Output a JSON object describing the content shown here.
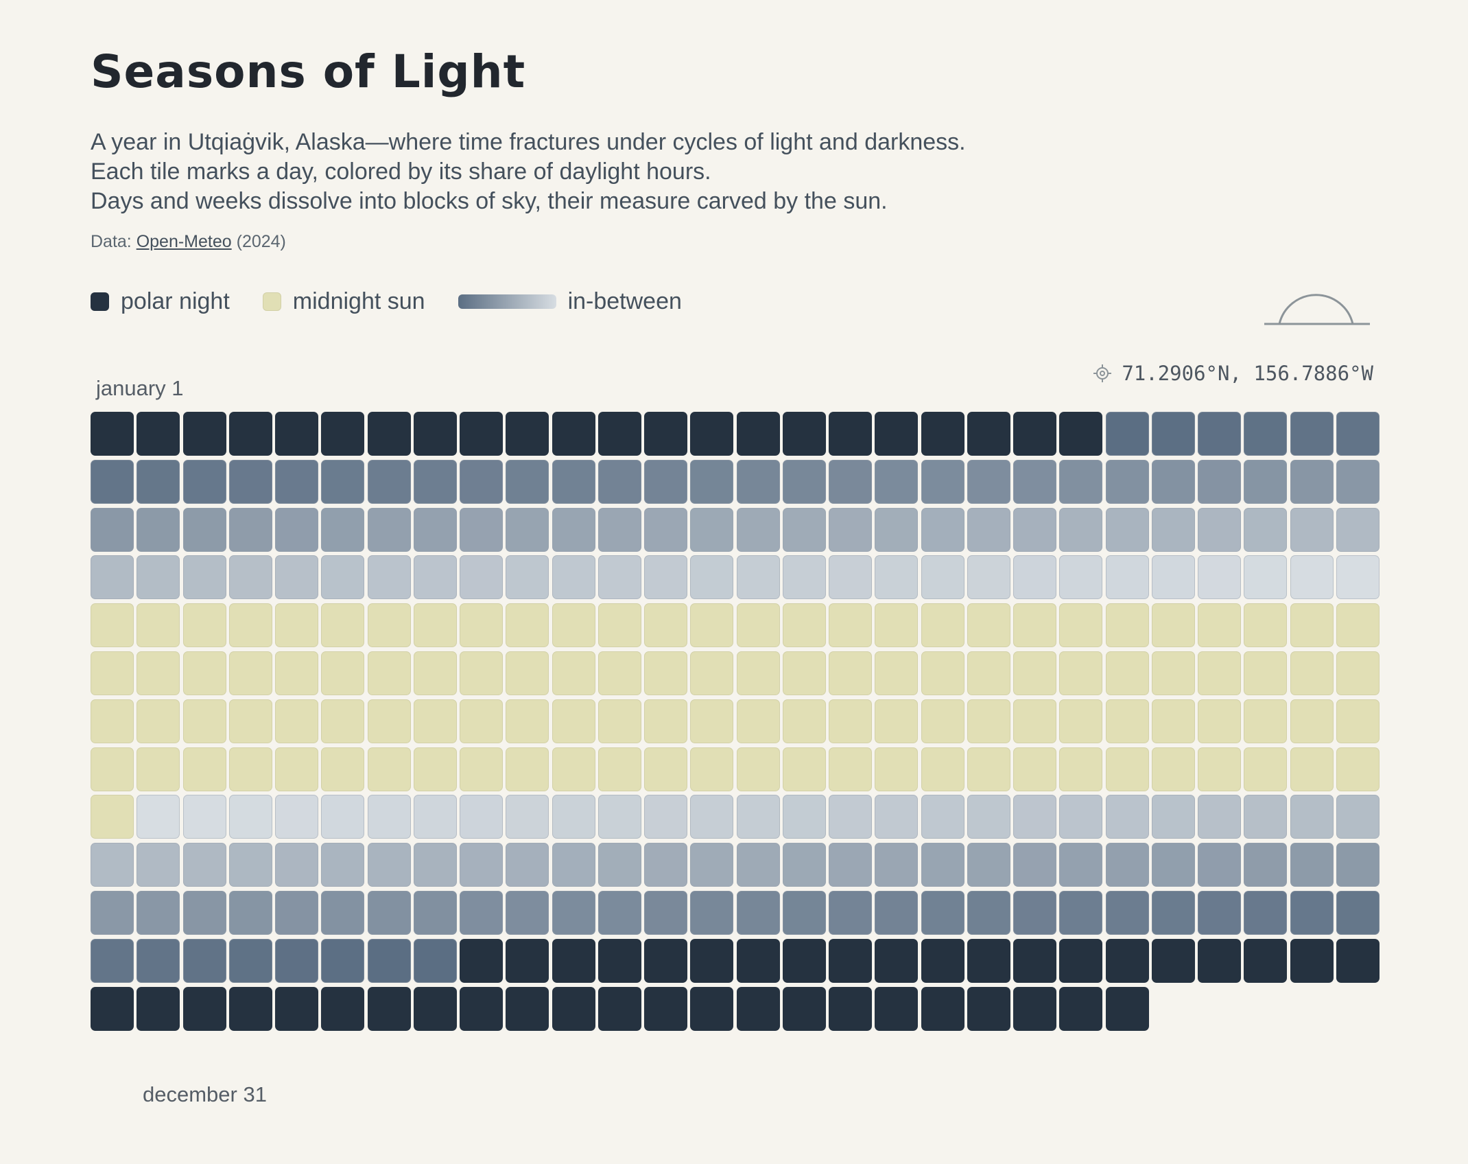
{
  "header": {
    "title": "Seasons of Light",
    "subtitle_lines": [
      "A year in Utqiaġvik, Alaska—where time fractures under cycles of light and darkness.",
      "Each tile marks a day, colored by its share of daylight hours.",
      "Days and weeks dissolve into blocks of sky, their measure carved by the sun."
    ],
    "source_prefix": "Data: ",
    "source_link": "Open-Meteo",
    "source_suffix": " (2024)"
  },
  "legend": {
    "night": "polar night",
    "sun": "midnight sun",
    "between": "in-between"
  },
  "location": {
    "coords": "71.2906°N, 156.7886°W"
  },
  "labels": {
    "start": "january 1",
    "end": "december 31"
  },
  "colors": {
    "background": "#f6f4ee",
    "polar_night": "#253240",
    "midnight_sun": "#e1dfb5",
    "between_dark": "#5b6e83",
    "between_light": "#d7dde2"
  },
  "icons": {
    "sun": "half-sun-horizon-icon",
    "location": "crosshair-icon"
  },
  "chart_data": {
    "type": "heatmap",
    "year": 2024,
    "columns_per_row": 28,
    "total_days": 366,
    "encoding": "daylight share (0 = polar night, 1 = midnight sun)",
    "daylight_fraction": [
      0,
      0,
      0,
      0,
      0,
      0,
      0,
      0,
      0,
      0,
      0,
      0,
      0,
      0,
      0,
      0,
      0,
      0,
      0,
      0,
      0,
      0,
      0.1,
      0.11,
      0.12,
      0.13,
      0.14,
      0.15,
      0.16,
      0.17,
      0.18,
      0.19,
      0.2,
      0.21,
      0.22,
      0.23,
      0.24,
      0.25,
      0.26,
      0.27,
      0.28,
      0.29,
      0.3,
      0.31,
      0.32,
      0.33,
      0.34,
      0.35,
      0.36,
      0.37,
      0.38,
      0.39,
      0.4,
      0.41,
      0.42,
      0.43,
      0.44,
      0.45,
      0.46,
      0.47,
      0.48,
      0.49,
      0.5,
      0.51,
      0.52,
      0.53,
      0.54,
      0.55,
      0.56,
      0.57,
      0.58,
      0.59,
      0.6,
      0.61,
      0.62,
      0.63,
      0.64,
      0.65,
      0.66,
      0.67,
      0.68,
      0.69,
      0.7,
      0.71,
      0.72,
      0.73,
      0.74,
      0.75,
      0.76,
      0.77,
      0.78,
      0.79,
      0.8,
      0.81,
      0.82,
      0.83,
      0.84,
      0.85,
      0.86,
      0.87,
      0.88,
      0.89,
      0.9,
      0.91,
      0.92,
      0.93,
      0.94,
      0.95,
      0.96,
      0.97,
      0.98,
      0.99,
      1,
      1,
      1,
      1,
      1,
      1,
      1,
      1,
      1,
      1,
      1,
      1,
      1,
      1,
      1,
      1,
      1,
      1,
      1,
      1,
      1,
      1,
      1,
      1,
      1,
      1,
      1,
      1,
      1,
      1,
      1,
      1,
      1,
      1,
      1,
      1,
      1,
      1,
      1,
      1,
      1,
      1,
      1,
      1,
      1,
      1,
      1,
      1,
      1,
      1,
      1,
      1,
      1,
      1,
      1,
      1,
      1,
      1,
      1,
      1,
      1,
      1,
      1,
      1,
      1,
      1,
      1,
      1,
      1,
      1,
      1,
      1,
      1,
      1,
      1,
      1,
      1,
      1,
      1,
      1,
      1,
      1,
      1,
      1,
      1,
      1,
      1,
      1,
      1,
      1,
      1,
      1,
      1,
      1,
      1,
      1,
      1,
      1,
      1,
      1,
      1,
      1,
      1,
      1,
      1,
      1,
      1,
      1,
      1,
      1,
      1,
      1,
      1,
      0.99,
      0.98,
      0.97,
      0.96,
      0.95,
      0.94,
      0.93,
      0.92,
      0.91,
      0.9,
      0.89,
      0.88,
      0.87,
      0.86,
      0.85,
      0.84,
      0.83,
      0.82,
      0.81,
      0.8,
      0.79,
      0.78,
      0.77,
      0.76,
      0.75,
      0.74,
      0.73,
      0.72,
      0.71,
      0.7,
      0.69,
      0.68,
      0.67,
      0.66,
      0.65,
      0.64,
      0.63,
      0.62,
      0.61,
      0.6,
      0.59,
      0.58,
      0.57,
      0.56,
      0.55,
      0.54,
      0.53,
      0.52,
      0.51,
      0.5,
      0.49,
      0.48,
      0.47,
      0.46,
      0.45,
      0.44,
      0.43,
      0.42,
      0.41,
      0.4,
      0.39,
      0.38,
      0.37,
      0.36,
      0.35,
      0.34,
      0.33,
      0.32,
      0.31,
      0.3,
      0.29,
      0.28,
      0.27,
      0.26,
      0.25,
      0.24,
      0.23,
      0.22,
      0.21,
      0.2,
      0.19,
      0.18,
      0.17,
      0.16,
      0.15,
      0.14,
      0.13,
      0.12,
      0.11,
      0.1,
      0.1,
      0,
      0,
      0,
      0,
      0,
      0,
      0,
      0,
      0,
      0,
      0,
      0,
      0,
      0,
      0,
      0,
      0,
      0,
      0,
      0,
      0,
      0,
      0,
      0,
      0,
      0,
      0,
      0,
      0,
      0,
      0,
      0,
      0,
      0,
      0,
      0,
      0,
      0,
      0,
      0,
      0,
      0,
      0
    ]
  }
}
